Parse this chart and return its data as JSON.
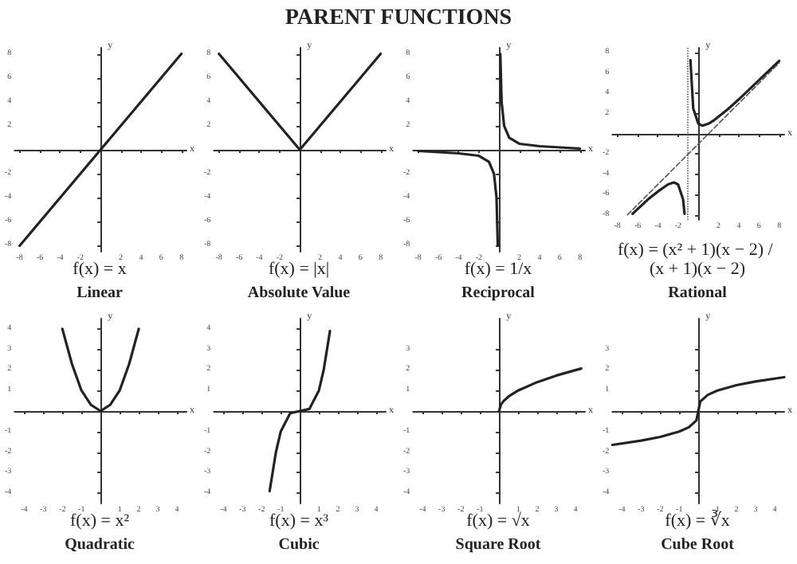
{
  "chart_data": [
    {
      "type": "other",
      "title": "PARENT FUNCTIONS"
    },
    {
      "type": "line",
      "title": "Linear",
      "subtitle": "f(x) = x",
      "xlabel": "x",
      "ylabel": "y",
      "xlim": [
        -8.5,
        8.5
      ],
      "ylim": [
        -8.5,
        8.5
      ],
      "xticks": [
        -8,
        -6,
        -4,
        -2,
        2,
        4,
        6,
        8
      ],
      "yticks": [
        -8,
        -6,
        -4,
        -2,
        2,
        4,
        6,
        8
      ],
      "marker": "none",
      "series": [
        {
          "color": "#222222",
          "x": [
            -8,
            8
          ],
          "values": [
            -8,
            8
          ]
        }
      ]
    },
    {
      "type": "line",
      "title": "Absolute Value",
      "subtitle": "f(x) = |x|",
      "xlabel": "x",
      "ylabel": "y",
      "xlim": [
        -8.5,
        8.5
      ],
      "ylim": [
        -8.5,
        8.5
      ],
      "xticks": [
        -8,
        -6,
        -4,
        -2,
        2,
        4,
        6,
        8
      ],
      "yticks": [
        -8,
        -6,
        -4,
        -2,
        2,
        4,
        6,
        8
      ],
      "marker": "none",
      "series": [
        {
          "color": "#222222",
          "x": [
            -8,
            0,
            8
          ],
          "values": [
            8,
            0,
            8
          ]
        }
      ]
    },
    {
      "type": "line",
      "title": "Reciprocal",
      "subtitle": "f(x) = 1/x",
      "xlabel": "x",
      "ylabel": "y",
      "xlim": [
        -8.5,
        8.5
      ],
      "ylim": [
        -8.5,
        8.5
      ],
      "xticks": [
        -8,
        -6,
        -4,
        -2,
        2,
        4,
        6,
        8
      ],
      "yticks": [
        -8,
        -6,
        -4,
        -2,
        2,
        4,
        6,
        8
      ],
      "marker": "none",
      "series": [
        {
          "color": "#222222",
          "x": [
            -8,
            -4,
            -2,
            -1,
            -0.5,
            -0.25,
            -0.125,
            0,
            0.125,
            0.25,
            0.5,
            1,
            2,
            4,
            8
          ],
          "values": [
            -0.1,
            -0.3,
            -0.5,
            -1,
            -2,
            -4,
            -8,
            null,
            8,
            4,
            2,
            1,
            0.5,
            0.3,
            0.1
          ]
        }
      ]
    },
    {
      "type": "line",
      "title": "Rational",
      "subtitle": "f(x) = (x² + 1)(x − 2) / (x + 1)(x − 2)",
      "xlabel": "x",
      "ylabel": "y",
      "xlim": [
        -8.5,
        8.5
      ],
      "ylim": [
        -8.5,
        8.5
      ],
      "xticks": [
        -8,
        -6,
        -4,
        -2,
        2,
        4,
        6,
        8
      ],
      "yticks": [
        -8,
        -6,
        -4,
        -2,
        2,
        4,
        6,
        8
      ],
      "marker": "none",
      "ref_lines": [
        {
          "axis": "x",
          "value": -1,
          "line_style": "dotted",
          "color": "#555555"
        }
      ],
      "series": [
        {
          "color": "#222222",
          "x": [
            -6.5,
            -5,
            -4,
            -3,
            -2.414,
            -2,
            -1.5,
            -1.36,
            -1,
            -0.78,
            -0.5,
            0,
            0.414,
            1,
            1.5,
            3,
            4,
            6,
            8
          ],
          "values": [
            -7.9,
            -6.5,
            -5.7,
            -5,
            -4.8,
            -5,
            -6.5,
            -7.9,
            null,
            7.3,
            2.5,
            1,
            0.8,
            1,
            1.3,
            2.5,
            3.4,
            5.3,
            7.2
          ]
        },
        {
          "type": "line",
          "color": "#555555",
          "line_style": "dashed",
          "x": [
            -7,
            8
          ],
          "values": [
            -8,
            7
          ]
        }
      ]
    },
    {
      "type": "line",
      "title": "Quadratic",
      "subtitle": "f(x) = x²",
      "xlabel": "x",
      "ylabel": "y",
      "xlim": [
        -4.5,
        4.5
      ],
      "ylim": [
        -4.5,
        4.5
      ],
      "xticks": [
        -4,
        -3,
        -2,
        -1,
        1,
        2,
        3,
        4
      ],
      "yticks": [
        -4,
        -3,
        -2,
        -1,
        1,
        2,
        3,
        4
      ],
      "marker": "none",
      "series": [
        {
          "color": "#222222",
          "x": [
            -2,
            -1.5,
            -1,
            -0.5,
            0,
            0.5,
            1,
            1.5,
            2
          ],
          "values": [
            4,
            2.3,
            1,
            0.3,
            0,
            0.3,
            1,
            2.3,
            4
          ]
        }
      ]
    },
    {
      "type": "line",
      "title": "Cubic",
      "subtitle": "f(x) = x³",
      "xlabel": "x",
      "ylabel": "y",
      "xlim": [
        -4.5,
        4.5
      ],
      "ylim": [
        -4.5,
        4.5
      ],
      "xticks": [
        -4,
        -3,
        -2,
        -1,
        1,
        2,
        3,
        4
      ],
      "yticks": [
        -4,
        -3,
        -2,
        -1,
        1,
        2,
        3,
        4
      ],
      "marker": "none",
      "series": [
        {
          "color": "#222222",
          "x": [
            -1.58,
            -1.25,
            -1,
            -0.5,
            0,
            0.5,
            1,
            1.25,
            1.58
          ],
          "values": [
            -3.9,
            -2,
            -1,
            -0.1,
            0,
            0.1,
            1,
            2,
            3.9
          ]
        }
      ]
    },
    {
      "type": "line",
      "title": "Square Root",
      "subtitle": "f(x) = √x",
      "xlabel": "x",
      "ylabel": "y",
      "xlim": [
        -4.5,
        4.5
      ],
      "ylim": [
        -4.5,
        4.5
      ],
      "xticks": [
        -4,
        -3,
        -2,
        -1,
        1,
        2,
        3,
        4
      ],
      "yticks": [
        -4,
        -3,
        -2,
        -1,
        1,
        2,
        3
      ],
      "marker": "none",
      "series": [
        {
          "color": "#222222",
          "x": [
            0,
            0.1,
            0.25,
            0.5,
            1,
            2,
            3,
            4.3
          ],
          "values": [
            0,
            0.32,
            0.5,
            0.71,
            1,
            1.41,
            1.73,
            2.07
          ]
        }
      ]
    },
    {
      "type": "line",
      "title": "Cube Root",
      "subtitle": "f(x) = ∛x",
      "xlabel": "x",
      "ylabel": "y",
      "xlim": [
        -4.5,
        4.5
      ],
      "ylim": [
        -4.5,
        4.5
      ],
      "xticks": [
        -4,
        -3,
        -2,
        -1,
        1,
        2,
        3,
        4
      ],
      "yticks": [
        -4,
        -3,
        -2,
        -1,
        1,
        2,
        3
      ],
      "marker": "none",
      "series": [
        {
          "color": "#222222",
          "x": [
            -4.5,
            -3,
            -2,
            -1,
            -0.5,
            -0.1,
            0,
            0.1,
            0.5,
            1,
            2,
            3,
            4.5
          ],
          "values": [
            -1.65,
            -1.44,
            -1.26,
            -1,
            -0.79,
            -0.46,
            0,
            0.46,
            0.79,
            1,
            1.26,
            1.44,
            1.65
          ]
        }
      ]
    }
  ]
}
